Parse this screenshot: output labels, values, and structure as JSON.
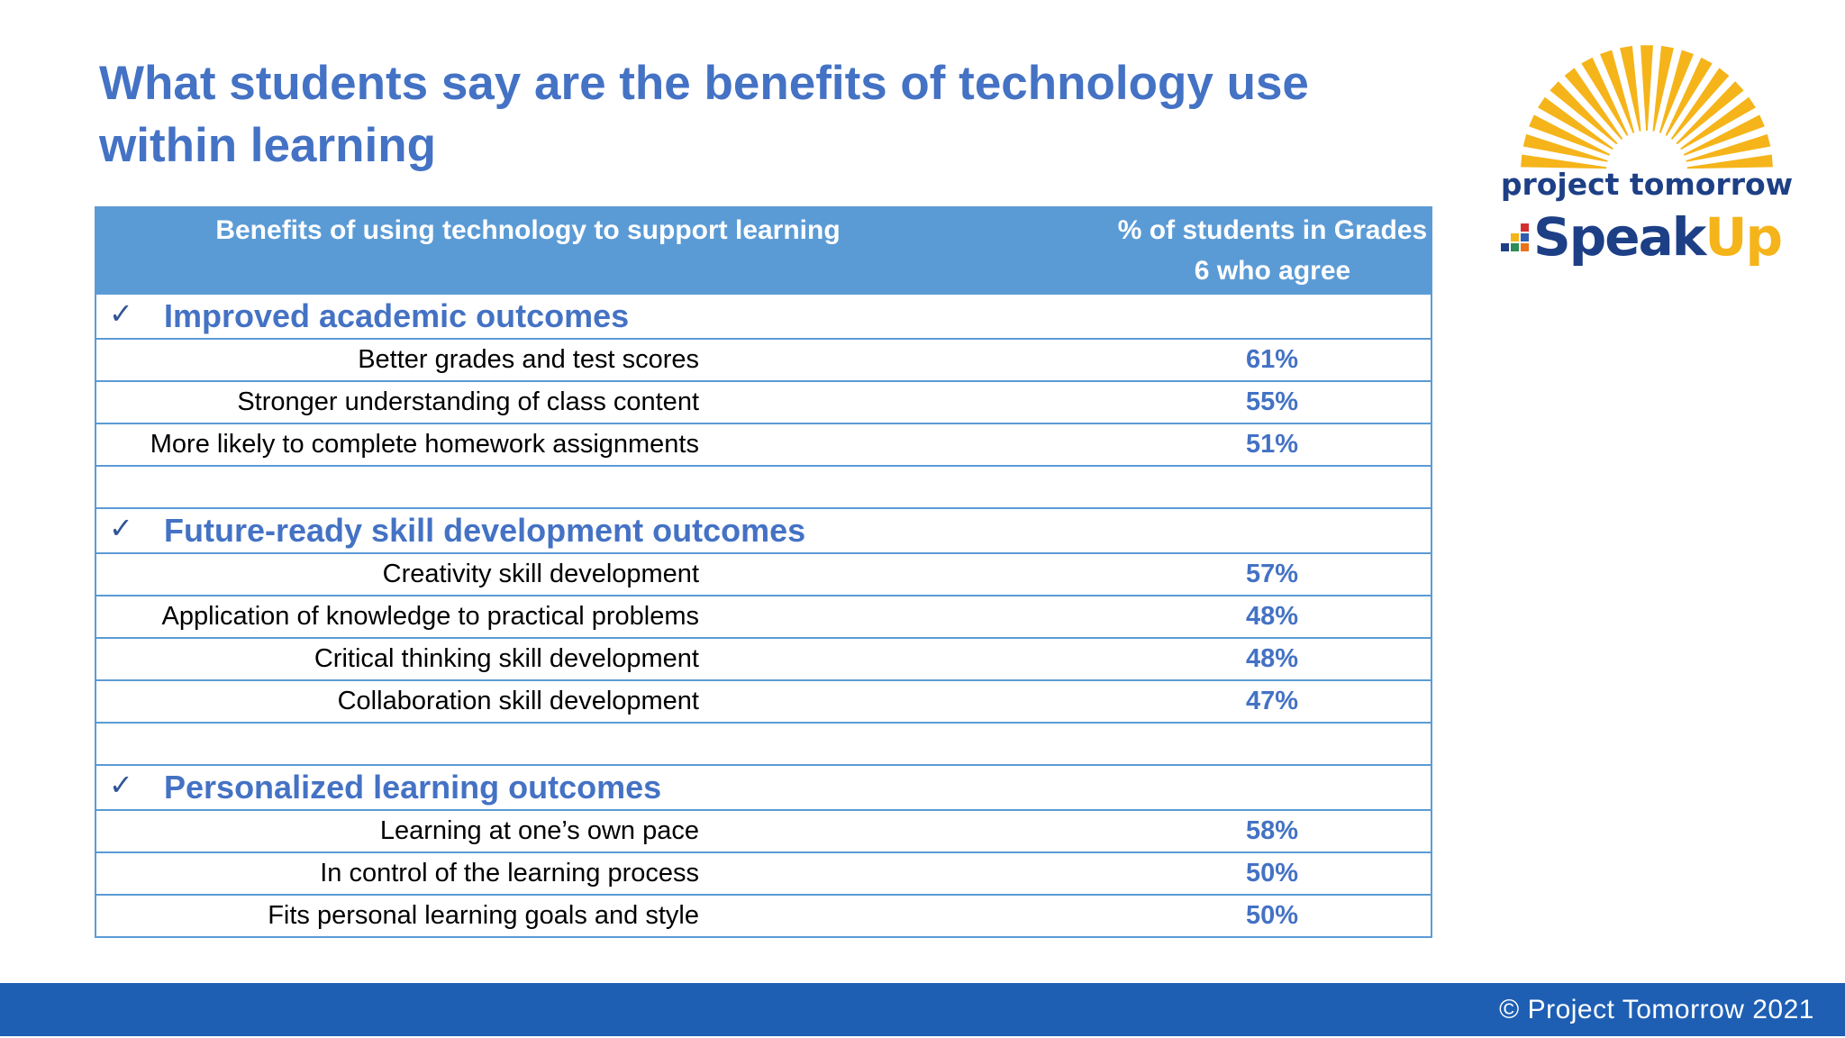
{
  "title": "What students say are the benefits of technology use within learning",
  "logo": {
    "line1": "project tomorrow",
    "speak": "Speak",
    "up": "Up",
    "colors": {
      "sun": "#f5b41a",
      "navy": "#1d3f86",
      "blue": "#2e5fb0",
      "up": "#f5b41a"
    }
  },
  "table": {
    "header": {
      "benefit": "Benefits of using technology to support learning",
      "percent": "% of students in Grades 6 who agree"
    },
    "sections": [
      {
        "label": "Improved academic outcomes",
        "icon": "check-icon",
        "items": [
          {
            "label": "Better grades and test scores",
            "value": "61%"
          },
          {
            "label": "Stronger understanding of class content",
            "value": "55%"
          },
          {
            "label": "More likely to complete homework assignments",
            "value": "51%"
          }
        ]
      },
      {
        "label": "Future-ready skill development outcomes",
        "icon": "check-icon",
        "items": [
          {
            "label": "Creativity skill development",
            "value": "57%"
          },
          {
            "label": "Application of knowledge to practical problems",
            "value": "48%"
          },
          {
            "label": "Critical thinking skill development",
            "value": "48%"
          },
          {
            "label": "Collaboration skill development",
            "value": "47%"
          }
        ]
      },
      {
        "label": "Personalized learning outcomes",
        "icon": "check-icon",
        "items": [
          {
            "label": "Learning at one’s own pace",
            "value": "58%"
          },
          {
            "label": "In control of the learning process",
            "value": "50%"
          },
          {
            "label": "Fits personal learning goals and style",
            "value": "50%"
          }
        ]
      }
    ]
  },
  "footer": {
    "text": "© Project Tomorrow 2021"
  },
  "colors": {
    "title": "#4472c4",
    "header_bg": "#5b9bd5",
    "border": "#5b9bd5",
    "value": "#4472c4",
    "footer_bg": "#1e5fb4"
  }
}
